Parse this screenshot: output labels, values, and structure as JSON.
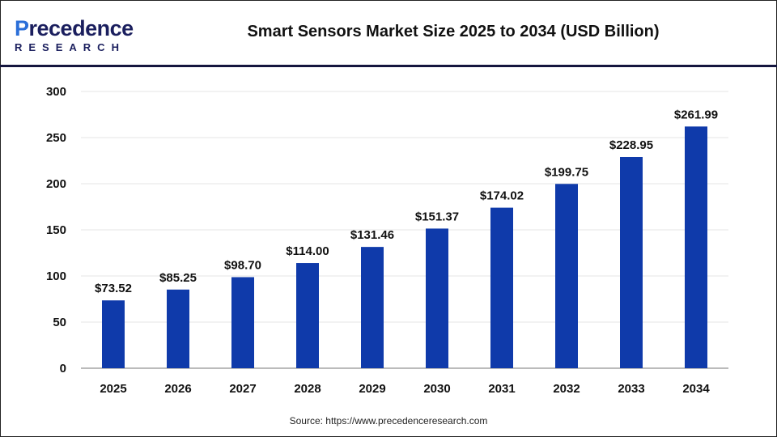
{
  "logo": {
    "line1_a": "P",
    "line1_b": "recedence",
    "line2": "RESEARCH"
  },
  "title": "Smart Sensors Market Size 2025 to 2034 (USD Billion)",
  "source": "Source: https://www.precedenceresearch.com",
  "colors": {
    "bar": "#0f3aaa",
    "header_rule": "#15163f",
    "grid": "#e6e6e6",
    "axis": "#bbbbbb"
  },
  "chart_data": {
    "type": "bar",
    "title": "Smart Sensors Market Size 2025 to 2034 (USD Billion)",
    "xlabel": "",
    "ylabel": "",
    "categories": [
      "2025",
      "2026",
      "2027",
      "2028",
      "2029",
      "2030",
      "2031",
      "2032",
      "2033",
      "2034"
    ],
    "values": [
      73.52,
      85.25,
      98.7,
      114.0,
      131.46,
      151.37,
      174.02,
      199.75,
      228.95,
      261.99
    ],
    "data_labels": [
      "$73.52",
      "$85.25",
      "$98.70",
      "$114.00",
      "$131.46",
      "$151.37",
      "$174.02",
      "$199.75",
      "$228.95",
      "$261.99"
    ],
    "ylim": [
      0,
      300
    ],
    "yticks": [
      0,
      50,
      100,
      150,
      200,
      250,
      300
    ],
    "grid": true,
    "legend": "none"
  }
}
